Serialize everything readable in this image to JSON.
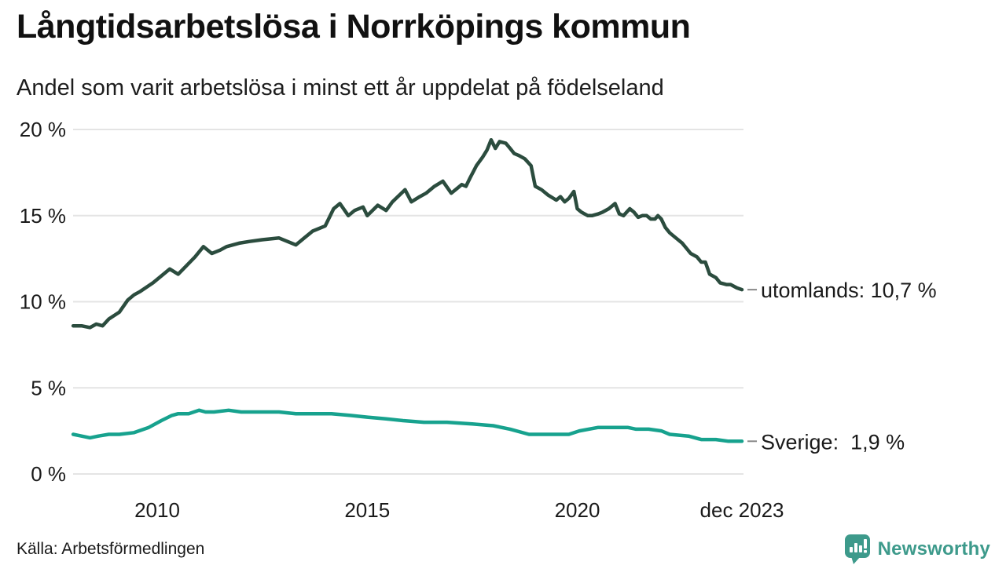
{
  "header": {
    "title": "Långtidsarbetslösa i Norrköpings kommun",
    "subtitle": "Andel som varit arbetslösa i minst ett år uppdelat på födelseland"
  },
  "footer": {
    "source": "Källa: Arbetsförmedlingen",
    "brand": "Newsworthy"
  },
  "colors": {
    "utomlands": "#2b4c3e",
    "sverige": "#17a28e",
    "grid": "#e4e4e4",
    "tick_text": "#1a1a1a",
    "legend_text": "#1a1a1a",
    "legend_dash": "#888888",
    "brand": "#3d9a8b"
  },
  "chart_data": {
    "type": "line",
    "title": "Långtidsarbetslösa i Norrköpings kommun",
    "subtitle": "Andel som varit arbetslösa i minst ett år uppdelat på födelseland",
    "xlabel": "",
    "ylabel": "",
    "x_range": [
      2008.0,
      2023.92
    ],
    "ylim": [
      0,
      20
    ],
    "grid": "horizontal-only",
    "legend_position": "right-of-line-end",
    "yticks": [
      {
        "value": 0,
        "label": "0 %"
      },
      {
        "value": 5,
        "label": "5 %"
      },
      {
        "value": 10,
        "label": "10 %"
      },
      {
        "value": 15,
        "label": "15 %"
      },
      {
        "value": 20,
        "label": "20 %"
      }
    ],
    "xticks": [
      {
        "value": 2010,
        "label": "2010"
      },
      {
        "value": 2015,
        "label": "2015"
      },
      {
        "value": 2020,
        "label": "2020"
      },
      {
        "value": 2023.92,
        "label": "dec 2023"
      }
    ],
    "series": [
      {
        "name": "utomlands",
        "label": "utomlands: 10,7 %",
        "last_value": "10,7 %",
        "color_key": "utomlands",
        "points": [
          [
            2008.0,
            8.6
          ],
          [
            2008.2,
            8.6
          ],
          [
            2008.4,
            8.5
          ],
          [
            2008.55,
            8.7
          ],
          [
            2008.7,
            8.6
          ],
          [
            2008.85,
            9.0
          ],
          [
            2009.1,
            9.4
          ],
          [
            2009.3,
            10.1
          ],
          [
            2009.45,
            10.4
          ],
          [
            2009.6,
            10.6
          ],
          [
            2009.9,
            11.1
          ],
          [
            2010.1,
            11.5
          ],
          [
            2010.3,
            11.9
          ],
          [
            2010.5,
            11.6
          ],
          [
            2010.7,
            12.1
          ],
          [
            2010.9,
            12.6
          ],
          [
            2011.1,
            13.2
          ],
          [
            2011.3,
            12.8
          ],
          [
            2011.5,
            13.0
          ],
          [
            2011.65,
            13.2
          ],
          [
            2011.95,
            13.4
          ],
          [
            2012.2,
            13.5
          ],
          [
            2012.5,
            13.6
          ],
          [
            2012.9,
            13.7
          ],
          [
            2013.1,
            13.5
          ],
          [
            2013.3,
            13.3
          ],
          [
            2013.5,
            13.7
          ],
          [
            2013.7,
            14.1
          ],
          [
            2014.0,
            14.4
          ],
          [
            2014.2,
            15.4
          ],
          [
            2014.35,
            15.7
          ],
          [
            2014.55,
            15.0
          ],
          [
            2014.7,
            15.3
          ],
          [
            2014.9,
            15.5
          ],
          [
            2015.0,
            15.0
          ],
          [
            2015.25,
            15.6
          ],
          [
            2015.45,
            15.3
          ],
          [
            2015.6,
            15.8
          ],
          [
            2015.9,
            16.5
          ],
          [
            2016.05,
            15.8
          ],
          [
            2016.25,
            16.1
          ],
          [
            2016.4,
            16.3
          ],
          [
            2016.6,
            16.7
          ],
          [
            2016.8,
            17.0
          ],
          [
            2017.0,
            16.3
          ],
          [
            2017.15,
            16.6
          ],
          [
            2017.25,
            16.8
          ],
          [
            2017.35,
            16.7
          ],
          [
            2017.45,
            17.2
          ],
          [
            2017.6,
            17.9
          ],
          [
            2017.75,
            18.4
          ],
          [
            2017.85,
            18.8
          ],
          [
            2017.95,
            19.4
          ],
          [
            2018.05,
            18.9
          ],
          [
            2018.15,
            19.3
          ],
          [
            2018.3,
            19.2
          ],
          [
            2018.4,
            18.9
          ],
          [
            2018.5,
            18.6
          ],
          [
            2018.6,
            18.5
          ],
          [
            2018.75,
            18.3
          ],
          [
            2018.9,
            17.9
          ],
          [
            2019.0,
            16.7
          ],
          [
            2019.15,
            16.5
          ],
          [
            2019.3,
            16.2
          ],
          [
            2019.5,
            15.9
          ],
          [
            2019.6,
            16.1
          ],
          [
            2019.7,
            15.8
          ],
          [
            2019.8,
            16.0
          ],
          [
            2019.92,
            16.4
          ],
          [
            2020.0,
            15.4
          ],
          [
            2020.1,
            15.2
          ],
          [
            2020.25,
            15.0
          ],
          [
            2020.35,
            15.0
          ],
          [
            2020.5,
            15.1
          ],
          [
            2020.6,
            15.2
          ],
          [
            2020.75,
            15.4
          ],
          [
            2020.9,
            15.7
          ],
          [
            2021.0,
            15.1
          ],
          [
            2021.1,
            15.0
          ],
          [
            2021.25,
            15.4
          ],
          [
            2021.35,
            15.2
          ],
          [
            2021.45,
            14.9
          ],
          [
            2021.55,
            15.0
          ],
          [
            2021.65,
            15.0
          ],
          [
            2021.75,
            14.8
          ],
          [
            2021.85,
            14.8
          ],
          [
            2021.92,
            15.0
          ],
          [
            2022.0,
            14.8
          ],
          [
            2022.1,
            14.3
          ],
          [
            2022.2,
            14.0
          ],
          [
            2022.35,
            13.7
          ],
          [
            2022.5,
            13.4
          ],
          [
            2022.6,
            13.1
          ],
          [
            2022.7,
            12.8
          ],
          [
            2022.85,
            12.6
          ],
          [
            2022.95,
            12.3
          ],
          [
            2023.05,
            12.3
          ],
          [
            2023.15,
            11.6
          ],
          [
            2023.3,
            11.4
          ],
          [
            2023.4,
            11.1
          ],
          [
            2023.55,
            11.0
          ],
          [
            2023.65,
            11.0
          ],
          [
            2023.8,
            10.8
          ],
          [
            2023.92,
            10.7
          ]
        ]
      },
      {
        "name": "Sverige",
        "label": "Sverige:  1,9 %",
        "last_value": "1,9 %",
        "color_key": "sverige",
        "points": [
          [
            2008.0,
            2.3
          ],
          [
            2008.2,
            2.2
          ],
          [
            2008.4,
            2.1
          ],
          [
            2008.6,
            2.2
          ],
          [
            2008.85,
            2.3
          ],
          [
            2009.1,
            2.3
          ],
          [
            2009.45,
            2.4
          ],
          [
            2009.8,
            2.7
          ],
          [
            2010.1,
            3.1
          ],
          [
            2010.35,
            3.4
          ],
          [
            2010.5,
            3.5
          ],
          [
            2010.75,
            3.5
          ],
          [
            2011.0,
            3.7
          ],
          [
            2011.15,
            3.6
          ],
          [
            2011.35,
            3.6
          ],
          [
            2011.7,
            3.7
          ],
          [
            2012.0,
            3.6
          ],
          [
            2012.5,
            3.6
          ],
          [
            2012.9,
            3.6
          ],
          [
            2013.3,
            3.5
          ],
          [
            2013.7,
            3.5
          ],
          [
            2014.15,
            3.5
          ],
          [
            2014.6,
            3.4
          ],
          [
            2015.0,
            3.3
          ],
          [
            2015.45,
            3.2
          ],
          [
            2015.85,
            3.1
          ],
          [
            2016.35,
            3.0
          ],
          [
            2016.9,
            3.0
          ],
          [
            2017.5,
            2.9
          ],
          [
            2018.0,
            2.8
          ],
          [
            2018.4,
            2.6
          ],
          [
            2018.85,
            2.3
          ],
          [
            2019.3,
            2.3
          ],
          [
            2019.8,
            2.3
          ],
          [
            2020.05,
            2.5
          ],
          [
            2020.5,
            2.7
          ],
          [
            2020.9,
            2.7
          ],
          [
            2021.2,
            2.7
          ],
          [
            2021.4,
            2.6
          ],
          [
            2021.7,
            2.6
          ],
          [
            2022.0,
            2.5
          ],
          [
            2022.2,
            2.3
          ],
          [
            2022.65,
            2.2
          ],
          [
            2022.95,
            2.0
          ],
          [
            2023.3,
            2.0
          ],
          [
            2023.6,
            1.9
          ],
          [
            2023.92,
            1.9
          ]
        ]
      }
    ]
  }
}
